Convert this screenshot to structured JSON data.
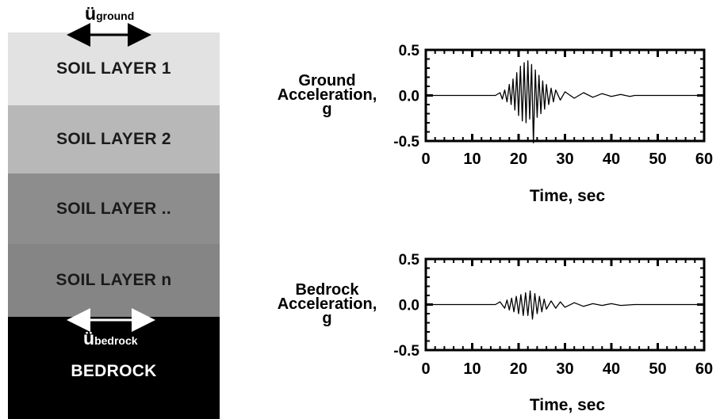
{
  "soil_column": {
    "top_motion_label": {
      "base": "ü",
      "sub": "ground"
    },
    "layers": [
      "SOIL LAYER 1",
      "SOIL LAYER 2",
      "SOIL LAYER ..",
      "SOIL LAYER n"
    ],
    "bottom_motion_label": {
      "base": "ü",
      "sub": "bedrock"
    },
    "bedrock_label": "BEDROCK",
    "colors": {
      "layer_1": "#e2e2e2",
      "layer_2": "#b8b8b8",
      "layer_3": "#8d8d8d",
      "layer_4": "#858585",
      "bedrock": "#000000"
    }
  },
  "chart_data": [
    {
      "type": "line",
      "ylabel": [
        "Ground",
        "Acceleration,",
        "g"
      ],
      "xlabel": "Time, sec",
      "xlim": [
        0,
        60
      ],
      "ylim": [
        -0.5,
        0.5
      ],
      "x_ticks": [
        "0",
        "10",
        "20",
        "30",
        "40",
        "50",
        "60"
      ],
      "y_ticks": [
        "0.5",
        "0.0",
        "-0.5"
      ],
      "series": [
        {
          "x": [
            0,
            15,
            16,
            16.5,
            17,
            17.5,
            18,
            18.4,
            18.8,
            19.2,
            19.6,
            20,
            20.4,
            20.8,
            21.2,
            21.6,
            22,
            22.4,
            22.8,
            23.2,
            23.6,
            24,
            24.4,
            24.8,
            25.2,
            25.6,
            26,
            26.5,
            27,
            27.5,
            28,
            29,
            30,
            32,
            34,
            36,
            38,
            40,
            42,
            44,
            45,
            60
          ],
          "y": [
            0,
            0,
            0.03,
            -0.04,
            0.06,
            -0.07,
            0.12,
            -0.1,
            0.18,
            -0.16,
            0.25,
            -0.22,
            0.32,
            -0.28,
            0.36,
            -0.3,
            0.38,
            -0.26,
            0.34,
            -0.52,
            0.28,
            -0.24,
            0.22,
            -0.2,
            0.16,
            -0.15,
            0.12,
            -0.1,
            0.08,
            -0.07,
            0.06,
            -0.05,
            0.04,
            -0.03,
            0.03,
            -0.02,
            0.02,
            -0.01,
            0.01,
            -0.01,
            0,
            0
          ]
        }
      ]
    },
    {
      "type": "line",
      "ylabel": [
        "Bedrock",
        "Acceleration,",
        "g"
      ],
      "xlabel": "Time, sec",
      "xlim": [
        0,
        60
      ],
      "ylim": [
        -0.5,
        0.5
      ],
      "x_ticks": [
        "0",
        "10",
        "20",
        "30",
        "40",
        "50",
        "60"
      ],
      "y_ticks": [
        "0.5",
        "0.0",
        "-0.5"
      ],
      "series": [
        {
          "x": [
            0,
            15,
            16,
            17,
            17.5,
            18,
            18.5,
            19,
            19.5,
            20,
            20.5,
            21,
            21.5,
            22,
            22.5,
            23,
            23.5,
            24,
            24.5,
            25,
            25.5,
            26,
            27,
            28,
            29,
            30,
            32,
            34,
            36,
            38,
            40,
            42,
            45,
            60
          ],
          "y": [
            0,
            0,
            0.03,
            -0.04,
            0.05,
            -0.06,
            0.07,
            -0.08,
            0.09,
            -0.1,
            0.11,
            -0.12,
            0.13,
            -0.12,
            0.15,
            -0.16,
            0.12,
            -0.1,
            0.09,
            -0.08,
            0.06,
            -0.05,
            0.04,
            -0.04,
            0.03,
            -0.03,
            0.02,
            -0.02,
            0.01,
            -0.01,
            0.01,
            -0.01,
            0,
            0
          ]
        }
      ]
    }
  ]
}
